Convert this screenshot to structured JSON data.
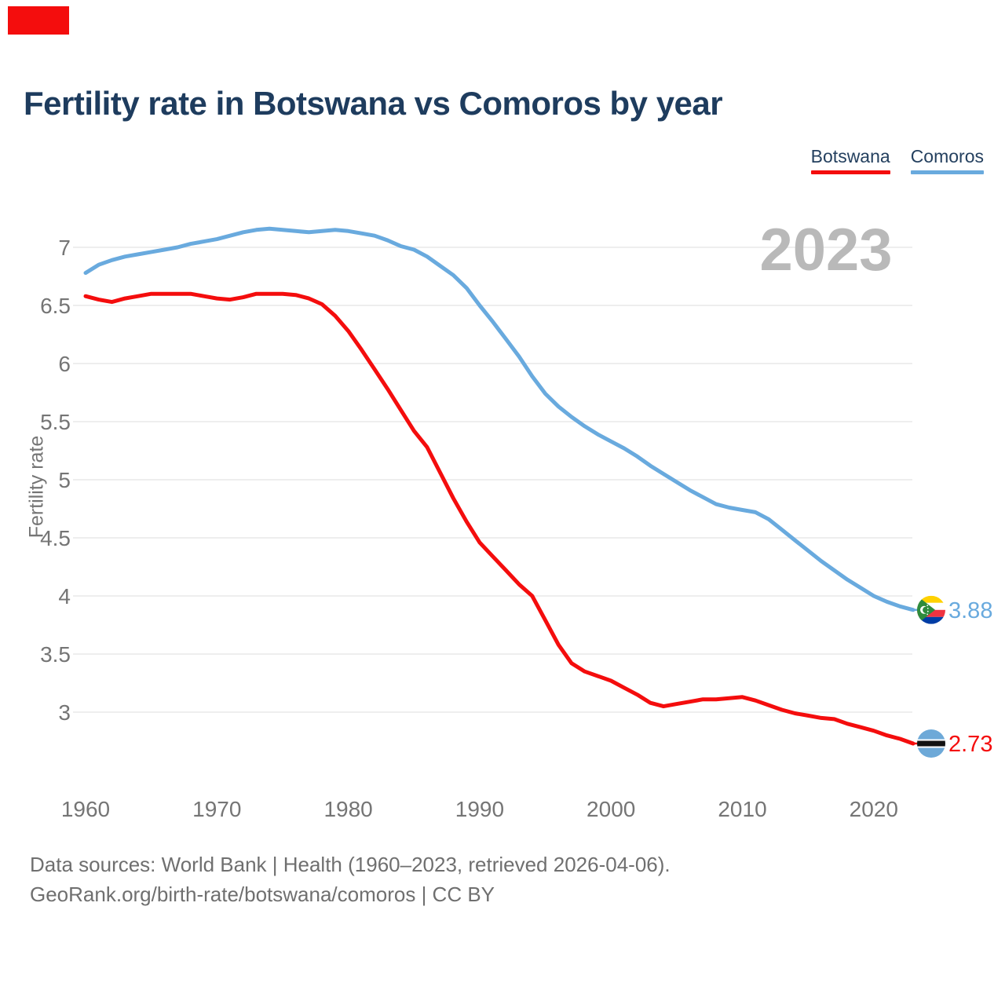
{
  "badge": {
    "color": "#f40d0d"
  },
  "header": {
    "title": "Fertility rate in Botswana vs Comoros by year"
  },
  "legend": [
    {
      "label": "Botswana",
      "color": "#f40d0d"
    },
    {
      "label": "Comoros",
      "color": "#69aade"
    }
  ],
  "watermark": "2023",
  "chart_data": {
    "type": "line",
    "title": "Fertility rate in Botswana vs Comoros by year",
    "xlabel": "",
    "ylabel": "Fertility rate",
    "x_ticks": [
      1960,
      1970,
      1980,
      1990,
      2000,
      2010,
      2020
    ],
    "y_ticks": [
      3,
      3.5,
      4,
      4.5,
      5,
      5.5,
      6,
      6.5,
      7
    ],
    "ylim": [
      2.6,
      7.3
    ],
    "grid": "horizontal",
    "legend_position": "top-right",
    "x": [
      1960,
      1961,
      1962,
      1963,
      1964,
      1965,
      1966,
      1967,
      1968,
      1969,
      1970,
      1971,
      1972,
      1973,
      1974,
      1975,
      1976,
      1977,
      1978,
      1979,
      1980,
      1981,
      1982,
      1983,
      1984,
      1985,
      1986,
      1987,
      1988,
      1989,
      1990,
      1991,
      1992,
      1993,
      1994,
      1995,
      1996,
      1997,
      1998,
      1999,
      2000,
      2001,
      2002,
      2003,
      2004,
      2005,
      2006,
      2007,
      2008,
      2009,
      2010,
      2011,
      2012,
      2013,
      2014,
      2015,
      2016,
      2017,
      2018,
      2019,
      2020,
      2021,
      2022,
      2023
    ],
    "series": [
      {
        "name": "Botswana",
        "color": "#f40d0d",
        "end_label": "2.73",
        "values": [
          6.58,
          6.55,
          6.53,
          6.56,
          6.58,
          6.6,
          6.6,
          6.6,
          6.6,
          6.58,
          6.56,
          6.55,
          6.57,
          6.6,
          6.6,
          6.6,
          6.59,
          6.56,
          6.51,
          6.41,
          6.28,
          6.12,
          5.95,
          5.78,
          5.6,
          5.42,
          5.28,
          5.06,
          4.84,
          4.64,
          4.46,
          4.34,
          4.22,
          4.1,
          4.0,
          3.79,
          3.58,
          3.42,
          3.35,
          3.31,
          3.27,
          3.21,
          3.15,
          3.08,
          3.05,
          3.07,
          3.09,
          3.11,
          3.11,
          3.12,
          3.13,
          3.1,
          3.06,
          3.02,
          2.99,
          2.97,
          2.95,
          2.94,
          2.9,
          2.87,
          2.84,
          2.8,
          2.77,
          2.73
        ]
      },
      {
        "name": "Comoros",
        "color": "#69aade",
        "end_label": "3.88",
        "values": [
          6.78,
          6.85,
          6.89,
          6.92,
          6.94,
          6.96,
          6.98,
          7.0,
          7.03,
          7.05,
          7.07,
          7.1,
          7.13,
          7.15,
          7.16,
          7.15,
          7.14,
          7.13,
          7.14,
          7.15,
          7.14,
          7.12,
          7.1,
          7.06,
          7.01,
          6.98,
          6.92,
          6.84,
          6.76,
          6.65,
          6.5,
          6.36,
          6.21,
          6.06,
          5.89,
          5.74,
          5.63,
          5.54,
          5.46,
          5.39,
          5.33,
          5.27,
          5.2,
          5.12,
          5.05,
          4.98,
          4.91,
          4.85,
          4.79,
          4.76,
          4.74,
          4.72,
          4.66,
          4.57,
          4.48,
          4.39,
          4.3,
          4.22,
          4.14,
          4.07,
          4.0,
          3.95,
          3.91,
          3.88
        ]
      }
    ]
  },
  "footer": {
    "line1": "Data sources: World Bank | Health (1960–2023, retrieved 2026-04-06).",
    "line2": "GeoRank.org/birth-rate/botswana/comoros | CC BY"
  }
}
